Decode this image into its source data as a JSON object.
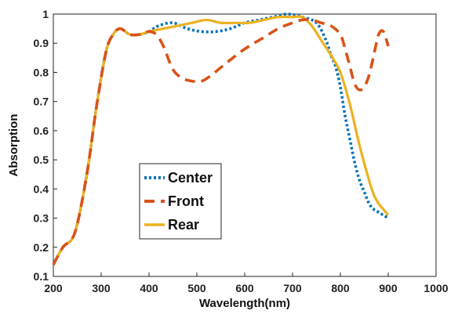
{
  "chart_data": {
    "type": "line",
    "title": "",
    "xlabel": "Wavelength(nm)",
    "ylabel": "Absorption",
    "xlim": [
      200,
      1000
    ],
    "ylim": [
      0.1,
      1.0
    ],
    "x_ticks": [
      200,
      300,
      400,
      500,
      600,
      700,
      800,
      900,
      1000
    ],
    "y_ticks": [
      0.1,
      0.2,
      0.3,
      0.4,
      0.5,
      0.6,
      0.7,
      0.8,
      0.9,
      1
    ],
    "x_tick_labels": [
      "200",
      "300",
      "400",
      "500",
      "600",
      "700",
      "800",
      "900",
      "1000"
    ],
    "y_tick_labels": [
      "0.1",
      "0.2",
      "0.3",
      "0.4",
      "0.5",
      "0.6",
      "0.7",
      "0.8",
      "0.9",
      "1"
    ],
    "grid": false,
    "legend_position": "lower-left",
    "series": [
      {
        "name": "Center",
        "color": "#0072BD",
        "style": "dotted",
        "x": [
          200,
          220,
          245,
          270,
          290,
          310,
          325,
          340,
          360,
          380,
          400,
          420,
          450,
          480,
          510,
          540,
          570,
          600,
          630,
          660,
          690,
          720,
          750,
          770,
          780,
          790,
          800,
          810,
          820,
          830,
          840,
          850,
          860,
          870,
          880,
          890,
          900
        ],
        "y": [
          0.14,
          0.2,
          0.25,
          0.45,
          0.68,
          0.87,
          0.93,
          0.95,
          0.93,
          0.93,
          0.94,
          0.96,
          0.97,
          0.95,
          0.94,
          0.94,
          0.95,
          0.97,
          0.98,
          0.99,
          1.0,
          0.99,
          0.97,
          0.91,
          0.86,
          0.82,
          0.75,
          0.65,
          0.57,
          0.49,
          0.43,
          0.39,
          0.35,
          0.33,
          0.32,
          0.31,
          0.3
        ]
      },
      {
        "name": "Front",
        "color": "#D95319",
        "style": "dashed",
        "x": [
          200,
          220,
          245,
          270,
          290,
          310,
          325,
          340,
          360,
          380,
          400,
          415,
          430,
          450,
          470,
          490,
          510,
          530,
          560,
          600,
          640,
          670,
          700,
          720,
          740,
          760,
          780,
          800,
          810,
          820,
          830,
          840,
          850,
          860,
          870,
          880,
          890,
          900
        ],
        "y": [
          0.14,
          0.2,
          0.25,
          0.45,
          0.68,
          0.87,
          0.93,
          0.95,
          0.93,
          0.93,
          0.94,
          0.93,
          0.89,
          0.81,
          0.78,
          0.77,
          0.77,
          0.79,
          0.83,
          0.88,
          0.92,
          0.95,
          0.97,
          0.98,
          0.98,
          0.97,
          0.96,
          0.93,
          0.88,
          0.82,
          0.76,
          0.74,
          0.75,
          0.79,
          0.86,
          0.93,
          0.94,
          0.89
        ]
      },
      {
        "name": "Rear",
        "color": "#EDB120",
        "style": "solid",
        "x": [
          200,
          220,
          245,
          270,
          290,
          310,
          325,
          340,
          360,
          380,
          400,
          430,
          460,
          490,
          520,
          550,
          580,
          610,
          640,
          670,
          700,
          720,
          740,
          760,
          780,
          800,
          820,
          840,
          860,
          870,
          880,
          890,
          900
        ],
        "y": [
          0.14,
          0.2,
          0.25,
          0.45,
          0.68,
          0.87,
          0.93,
          0.95,
          0.93,
          0.93,
          0.94,
          0.95,
          0.96,
          0.97,
          0.98,
          0.97,
          0.97,
          0.97,
          0.98,
          0.99,
          0.99,
          0.99,
          0.96,
          0.91,
          0.86,
          0.8,
          0.69,
          0.55,
          0.43,
          0.38,
          0.35,
          0.33,
          0.31
        ]
      }
    ]
  }
}
